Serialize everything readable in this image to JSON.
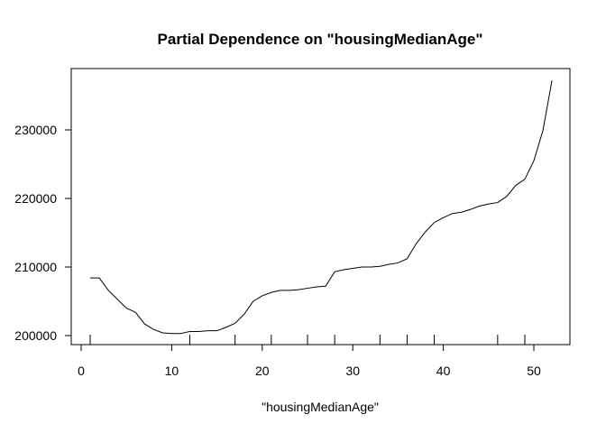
{
  "chart_data": {
    "type": "line",
    "title": "Partial Dependence on \"housingMedianAge\"",
    "xlabel": "\"housingMedianAge\"",
    "ylabel": "",
    "xlim": [
      0,
      52
    ],
    "ylim": [
      200000,
      237000
    ],
    "x_ticks": [
      0,
      10,
      20,
      30,
      40,
      50
    ],
    "x_tick_labels": [
      "0",
      "10",
      "20",
      "30",
      "40",
      "50"
    ],
    "y_ticks": [
      200000,
      210000,
      220000,
      230000
    ],
    "y_tick_labels": [
      "200000",
      "210000",
      "220000",
      "230000"
    ],
    "grid": false,
    "legend": "none",
    "line_color": "#000000",
    "rug": [
      1,
      12,
      17,
      21,
      25,
      28,
      33,
      36,
      39,
      46,
      49
    ],
    "series": [
      {
        "x": [
          1,
          2,
          3,
          4,
          5,
          6,
          7,
          8,
          9,
          10,
          11,
          12,
          13,
          14,
          15,
          16,
          17,
          18,
          19,
          20,
          21,
          22,
          23,
          24,
          25,
          26,
          27,
          28,
          29,
          30,
          31,
          32,
          33,
          34,
          35,
          36,
          37,
          38,
          39,
          40,
          41,
          42,
          43,
          44,
          45,
          46,
          47,
          48,
          49,
          50,
          51,
          52
        ],
        "values": [
          208400,
          208400,
          206600,
          205300,
          204000,
          203400,
          201700,
          200900,
          200400,
          200300,
          200300,
          200600,
          200600,
          200700,
          200700,
          201200,
          201800,
          203100,
          205000,
          205800,
          206300,
          206600,
          206600,
          206700,
          206900,
          207100,
          207200,
          209300,
          209600,
          209800,
          210000,
          210000,
          210100,
          210400,
          210600,
          211200,
          213400,
          215100,
          216500,
          217200,
          217800,
          218000,
          218400,
          218900,
          219200,
          219400,
          220300,
          221900,
          222800,
          225500,
          229900,
          237200
        ]
      }
    ]
  }
}
